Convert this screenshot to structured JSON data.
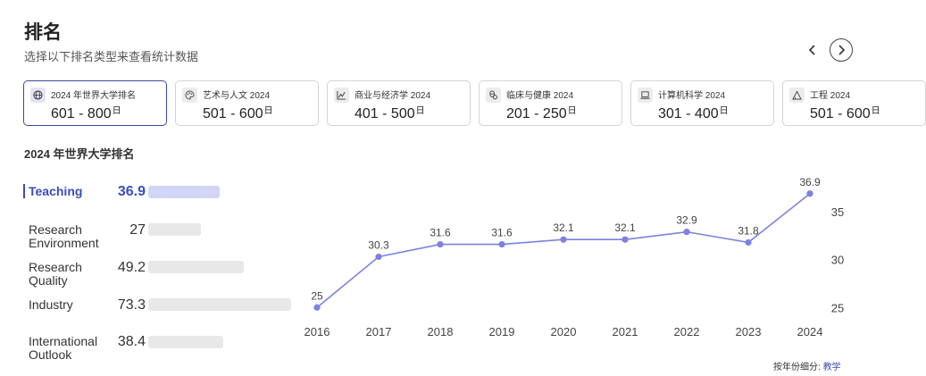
{
  "header": {
    "title": "排名",
    "subtitle": "选择以下排名类型来查看统计数据"
  },
  "cards": [
    {
      "label": "2024 年世界大学排名",
      "value": "601 - 800",
      "suffix": "日",
      "icon": "globe-icon",
      "active": true
    },
    {
      "label": "艺术与人文 2024",
      "value": "501 - 600",
      "suffix": "日",
      "icon": "palette-icon",
      "active": false
    },
    {
      "label": "商业与经济学 2024",
      "value": "401 - 500",
      "suffix": "日",
      "icon": "chart-line-icon",
      "active": false
    },
    {
      "label": "临床与健康 2024",
      "value": "201 - 250",
      "suffix": "日",
      "icon": "health-icon",
      "active": false
    },
    {
      "label": "计算机科学 2024",
      "value": "301 - 400",
      "suffix": "日",
      "icon": "laptop-icon",
      "active": false
    },
    {
      "label": "工程 2024",
      "value": "501 - 600",
      "suffix": "日",
      "icon": "engineering-icon",
      "active": false
    }
  ],
  "section": {
    "title": "2024 年世界大学排名"
  },
  "metrics": [
    {
      "label": "Teaching",
      "value": "36.9",
      "score": 36.9,
      "active": true
    },
    {
      "label": "Research Environment",
      "value": "27",
      "score": 27,
      "active": false
    },
    {
      "label": "Research Quality",
      "value": "49.2",
      "score": 49.2,
      "active": false
    },
    {
      "label": "Industry",
      "value": "73.3",
      "score": 73.3,
      "active": false
    },
    {
      "label": "International Outlook",
      "value": "38.4",
      "score": 38.4,
      "active": false
    }
  ],
  "chart_data": {
    "type": "line",
    "x": [
      "2016",
      "2017",
      "2018",
      "2019",
      "2020",
      "2021",
      "2022",
      "2023",
      "2024"
    ],
    "series": [
      {
        "values": [
          25,
          30.3,
          31.6,
          31.6,
          32.1,
          32.1,
          32.9,
          31.8,
          36.9
        ],
        "labels": [
          "25",
          "30.3",
          "31.6",
          "31.6",
          "32.1",
          "32.1",
          "32.9",
          "31.8",
          "36.9"
        ]
      }
    ],
    "yticks": [
      25,
      30,
      35
    ],
    "ylim": [
      24,
      38
    ],
    "y_axis_position": "right",
    "grid": false,
    "color": "#7b82e0"
  },
  "footer": {
    "note": "按年份细分:",
    "link": "教学"
  }
}
